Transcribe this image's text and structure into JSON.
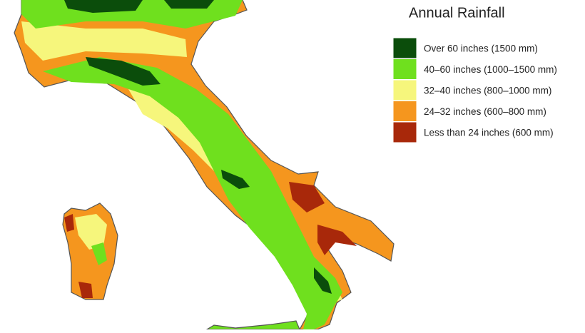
{
  "title": "Annual Rainfall",
  "legend": [
    {
      "label": "Over 60 inches (1500 mm)",
      "color": "#0b4d0b"
    },
    {
      "label": "40–60 inches (1000–1500 mm)",
      "color": "#6fe01e"
    },
    {
      "label": "32–40 inches (800–1000 mm)",
      "color": "#f6f67c"
    },
    {
      "label": "24–32 inches (600–800 mm)",
      "color": "#f5961e"
    },
    {
      "label": "Less than 24 inches (600 mm)",
      "color": "#a8280a"
    }
  ]
}
